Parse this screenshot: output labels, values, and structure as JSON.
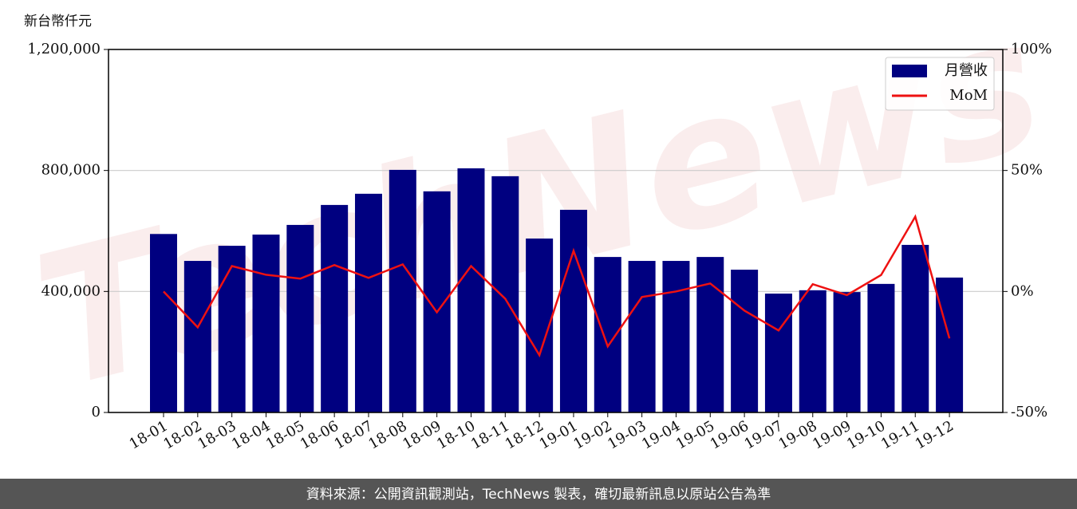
{
  "chart_data": {
    "type": "bar",
    "ylabel": "新台幣仟元",
    "watermark": "TechNews",
    "footer": "資料來源：公開資訊觀測站，TechNews 製表，確切最新訊息以原站公告為準",
    "categories": [
      "18-01",
      "18-02",
      "18-03",
      "18-04",
      "18-05",
      "18-06",
      "18-07",
      "18-08",
      "18-09",
      "18-10",
      "18-11",
      "18-12",
      "19-01",
      "19-02",
      "19-03",
      "19-04",
      "19-05",
      "19-06",
      "19-07",
      "19-08",
      "19-09",
      "19-10",
      "19-11",
      "19-12"
    ],
    "series": [
      {
        "name": "月營收",
        "type": "bar",
        "color": "#000080",
        "values": [
          590000,
          501000,
          551000,
          588000,
          620000,
          686000,
          723000,
          802000,
          731000,
          807000,
          781000,
          575000,
          670000,
          514000,
          501000,
          501000,
          514000,
          472000,
          393000,
          404000,
          398000,
          425000,
          554000,
          446000
        ]
      },
      {
        "name": "MoM",
        "type": "line",
        "axis": "y2",
        "color": "#ee1111",
        "values": [
          0,
          -14.8,
          10.5,
          6.9,
          5.3,
          10.9,
          5.6,
          11.2,
          -8.6,
          10.5,
          -3,
          -26.3,
          16.8,
          -22.7,
          -2.3,
          0,
          3.3,
          -7.9,
          -16.1,
          3,
          -1.5,
          6.8,
          30.9,
          -19.4
        ]
      }
    ],
    "ylim": [
      0,
      1200000
    ],
    "yticks": [
      0,
      {
        "value": 400000,
        "label": "400,000"
      },
      {
        "value": 800000,
        "label": "800,000"
      },
      {
        "value": 1200000,
        "label": "1,200,000"
      }
    ],
    "y2lim": [
      -50,
      100
    ],
    "y2ticks": [
      {
        "value": -50,
        "label": "-50%"
      },
      {
        "value": 0,
        "label": "0%"
      },
      {
        "value": 50,
        "label": "50%"
      },
      {
        "value": 100,
        "label": "100%"
      }
    ],
    "grid": true,
    "legend": "upper right"
  }
}
